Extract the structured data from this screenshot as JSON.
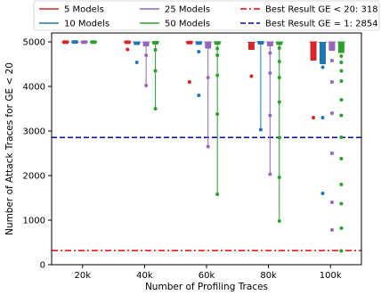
{
  "chart_data": {
    "type": "scatter",
    "xlabel": "Number of Profiling Traces",
    "ylabel": "Number of Attack Traces for GE < 20",
    "x_ticks": [
      20000,
      40000,
      60000,
      80000,
      100000
    ],
    "x_tick_labels": [
      "20k",
      "40k",
      "60k",
      "80k",
      "100k"
    ],
    "y_ticks": [
      0,
      1000,
      2000,
      3000,
      4000,
      5000
    ],
    "y_tick_labels": [
      "0",
      "1000",
      "2000",
      "3000",
      "4000",
      "5000"
    ],
    "xlim": [
      10000,
      110000
    ],
    "ylim": [
      0,
      5200
    ],
    "legend_placement": "top (above plot, 3 columns)",
    "series": [
      {
        "name": "5 Models",
        "color": "#d62728",
        "style": "solid",
        "groups": [
          {
            "x": 14500,
            "box": [
              4990,
              5000
            ],
            "outliers": []
          },
          {
            "x": 34500,
            "box": [
              4985,
              5000
            ],
            "outliers": [
              4830
            ]
          },
          {
            "x": 54500,
            "box": [
              4970,
              5000
            ],
            "outliers": [
              4100
            ]
          },
          {
            "x": 74500,
            "box": [
              4820,
              4990
            ],
            "outliers": [
              4230
            ]
          },
          {
            "x": 94500,
            "box": [
              4580,
              5000
            ],
            "outliers": [
              3300
            ]
          }
        ]
      },
      {
        "name": "10 Models",
        "color": "#1f77b4",
        "style": "solid",
        "groups": [
          {
            "x": 17500,
            "box": [
              4995,
              5000
            ],
            "outliers": []
          },
          {
            "x": 37500,
            "box": [
              4940,
              5000
            ],
            "outliers": [
              4540
            ]
          },
          {
            "x": 57500,
            "box": [
              4950,
              5000
            ],
            "outliers": [
              4780,
              3800
            ]
          },
          {
            "x": 77500,
            "whisker": [
              3030,
              5000
            ],
            "box": [
              4960,
              5000
            ],
            "outliers": [
              3030
            ]
          },
          {
            "x": 97500,
            "box": [
              4500,
              4990
            ],
            "outliers": [
              4430,
              3300,
              1600
            ]
          }
        ]
      },
      {
        "name": "25 Models",
        "color": "#9467bd",
        "style": "solid",
        "groups": [
          {
            "x": 20500,
            "box": [
              4990,
              5000
            ],
            "outliers": []
          },
          {
            "x": 40500,
            "whisker": [
              4020,
              5000
            ],
            "box": [
              4900,
              5000
            ],
            "outliers": [
              4700,
              4020
            ]
          },
          {
            "x": 60500,
            "whisker": [
              2650,
              5000
            ],
            "box": [
              4850,
              5000
            ],
            "outliers": [
              4200,
              2650
            ]
          },
          {
            "x": 80500,
            "whisker": [
              2030,
              5000
            ],
            "box": [
              4900,
              5000
            ],
            "outliers": [
              4750,
              4300,
              3350,
              2030
            ]
          },
          {
            "x": 100500,
            "box": [
              4800,
              5000
            ],
            "outliers": [
              4580,
              4100,
              3400,
              2500,
              1400,
              780
            ]
          }
        ]
      },
      {
        "name": "50 Models",
        "color": "#2ca02c",
        "style": "solid",
        "groups": [
          {
            "x": 23500,
            "box": [
              4990,
              5000
            ],
            "outliers": []
          },
          {
            "x": 43500,
            "whisker": [
              3500,
              5000
            ],
            "box": [
              4960,
              5000
            ],
            "outliers": [
              4820,
              4350,
              3500
            ]
          },
          {
            "x": 63500,
            "whisker": [
              1580,
              5000
            ],
            "box": [
              4950,
              5000
            ],
            "outliers": [
              4850,
              4700,
              4250,
              3380,
              1580
            ]
          },
          {
            "x": 83500,
            "whisker": [
              980,
              5000
            ],
            "box": [
              4940,
              5000
            ],
            "outliers": [
              4860,
              4560,
              4200,
              3650,
              2850,
              1960,
              980
            ]
          },
          {
            "x": 103500,
            "box": [
              4750,
              5000
            ],
            "outliers": [
              4680,
              4540,
              4350,
              4120,
              3700,
              3350,
              2860,
              2380,
              1800,
              1370,
              820,
              310
            ]
          }
        ]
      }
    ],
    "reference_lines": [
      {
        "name": "Best Result GE < 20: 318 traces",
        "y": 318,
        "color": "#ff0000",
        "style": "dashdot"
      },
      {
        "name": "Best Result GE = 1: 2854 traces",
        "y": 2854,
        "color": "#0000cc",
        "style": "dashed"
      }
    ]
  }
}
